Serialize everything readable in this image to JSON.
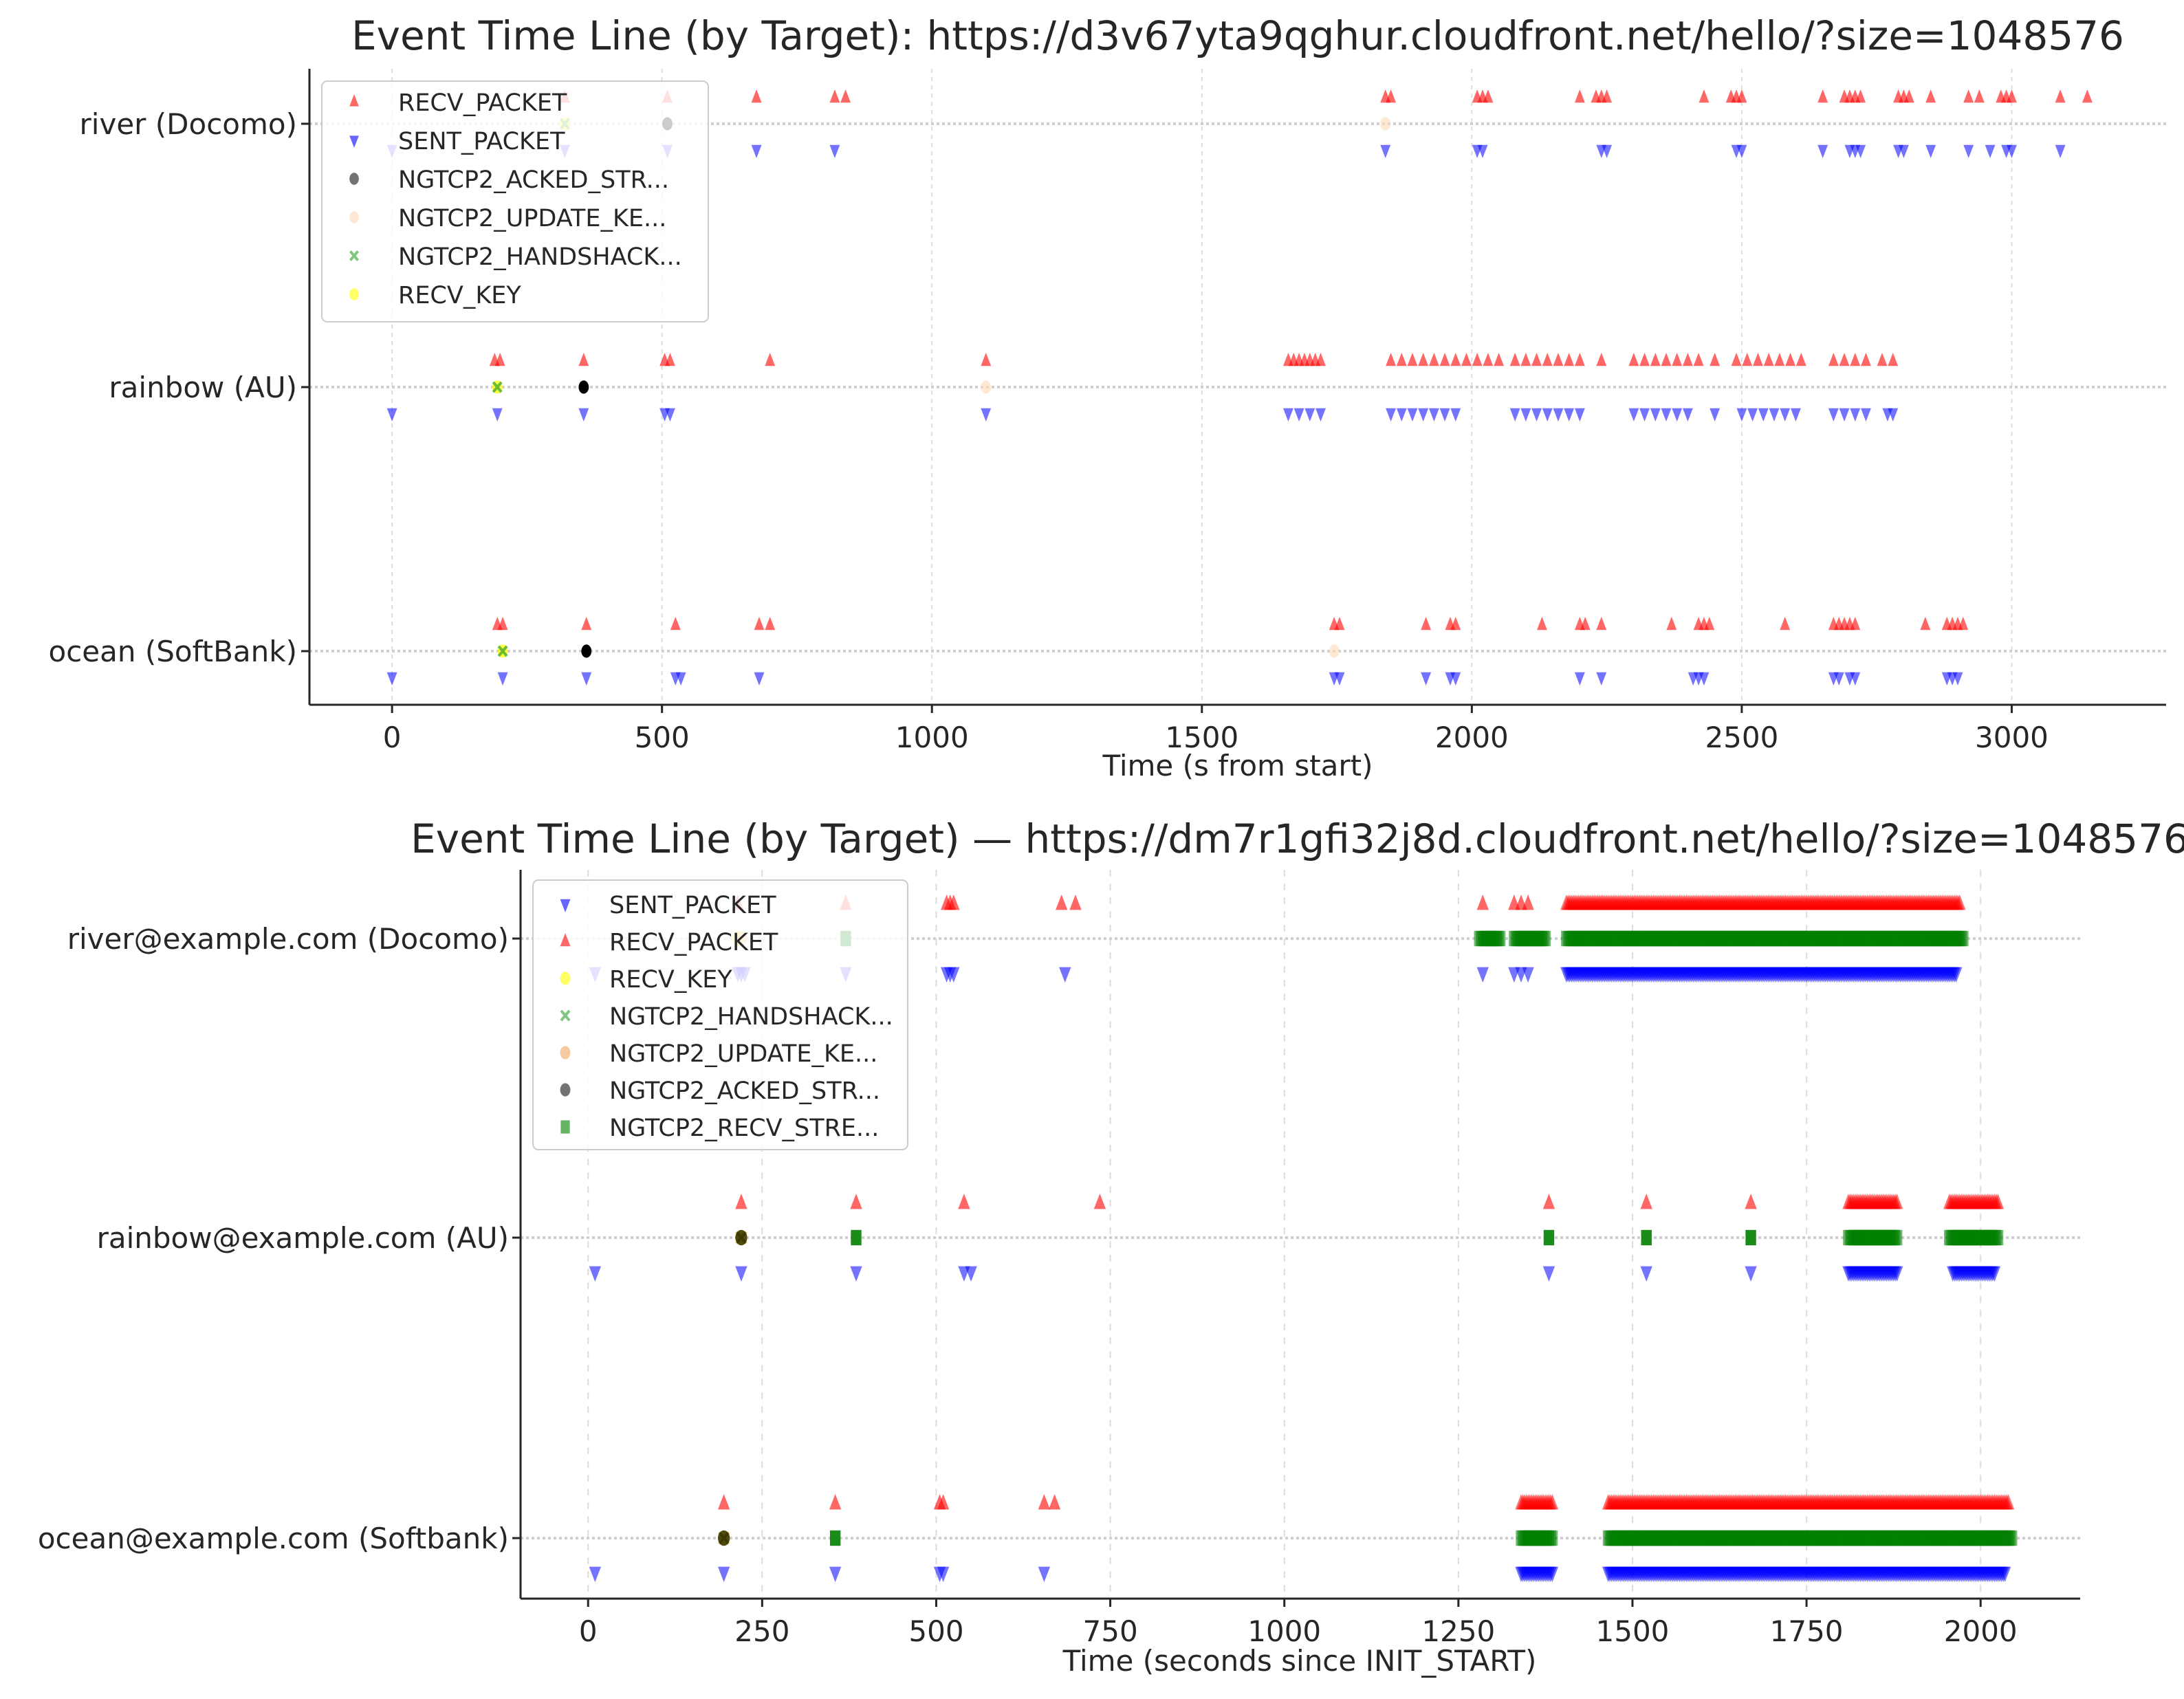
{
  "chart_data": [
    {
      "type": "scatter",
      "title": "Event Time Line (by Target): https://d3v67yta9qghur.cloudfront.net/hello/?size=1048576",
      "xlabel": "Time (s from start)",
      "ylabel": "",
      "xlim": [
        -153,
        3286
      ],
      "xticks": [
        0,
        500,
        1000,
        1500,
        2000,
        2500,
        3000
      ],
      "grid": true,
      "legend_position": "upper left",
      "legend": [
        {
          "label": "RECV_PACKET",
          "marker": "triangle-up",
          "color": "#ff0000"
        },
        {
          "label": "SENT_PACKET",
          "marker": "triangle-down",
          "color": "#0000ff"
        },
        {
          "label": "NGTCP2_ACKED_STR...",
          "marker": "circle",
          "color": "#000000"
        },
        {
          "label": "NGTCP2_UPDATE_KE...",
          "marker": "circle",
          "color": "#ffdab9"
        },
        {
          "label": "NGTCP2_HANDSHACK...",
          "marker": "x",
          "color": "#2ca02c"
        },
        {
          "label": "RECV_KEY",
          "marker": "circle",
          "color": "#ffff00"
        }
      ],
      "categories": [
        "river (Docomo)",
        "rainbow (AU)",
        "ocean (SoftBank)"
      ],
      "rows": [
        {
          "label": "river (Docomo)",
          "RECV_PACKET": [
            320,
            510,
            675,
            820,
            840,
            1840,
            1850,
            2010,
            2020,
            2030,
            2200,
            2230,
            2240,
            2250,
            2430,
            2480,
            2490,
            2500,
            2650,
            2690,
            2700,
            2710,
            2720,
            2790,
            2800,
            2810,
            2850,
            2920,
            2940,
            2980,
            2990,
            3000,
            3090,
            3140
          ],
          "SENT_PACKET": [
            0,
            320,
            510,
            675,
            820,
            1840,
            2010,
            2020,
            2240,
            2250,
            2490,
            2500,
            2650,
            2700,
            2710,
            2720,
            2790,
            2800,
            2850,
            2920,
            2960,
            2990,
            3000,
            3090
          ],
          "NGTCP2_ACKED_STR": [
            510
          ],
          "NGTCP2_UPDATE_KE": [
            1840
          ],
          "NGTCP2_HANDSHACK": [
            320
          ],
          "RECV_KEY": [
            320
          ]
        },
        {
          "label": "rainbow (AU)",
          "RECV_PACKET": [
            190,
            200,
            355,
            505,
            515,
            700,
            1100,
            1660,
            1670,
            1680,
            1690,
            1700,
            1710,
            1720,
            1850,
            1870,
            1890,
            1910,
            1930,
            1950,
            1970,
            1990,
            2010,
            2030,
            2050,
            2080,
            2100,
            2120,
            2140,
            2160,
            2180,
            2200,
            2240,
            2300,
            2320,
            2340,
            2360,
            2380,
            2400,
            2420,
            2450,
            2490,
            2510,
            2530,
            2550,
            2570,
            2590,
            2610,
            2670,
            2690,
            2710,
            2730,
            2760,
            2780
          ],
          "SENT_PACKET": [
            0,
            195,
            355,
            505,
            515,
            1100,
            1660,
            1680,
            1700,
            1720,
            1850,
            1870,
            1890,
            1910,
            1930,
            1950,
            1970,
            2080,
            2100,
            2120,
            2140,
            2160,
            2180,
            2200,
            2300,
            2320,
            2340,
            2360,
            2380,
            2400,
            2450,
            2500,
            2520,
            2540,
            2560,
            2580,
            2600,
            2670,
            2690,
            2710,
            2730,
            2770,
            2780
          ],
          "NGTCP2_ACKED_STR": [
            355
          ],
          "NGTCP2_UPDATE_KE": [
            1100
          ],
          "NGTCP2_HANDSHACK": [
            195
          ],
          "RECV_KEY": [
            195
          ]
        },
        {
          "label": "ocean (SoftBank)",
          "RECV_PACKET": [
            195,
            205,
            360,
            525,
            680,
            700,
            1745,
            1755,
            1915,
            1960,
            1970,
            2130,
            2200,
            2210,
            2240,
            2370,
            2420,
            2430,
            2440,
            2580,
            2670,
            2680,
            2690,
            2700,
            2710,
            2840,
            2880,
            2890,
            2900,
            2910
          ],
          "SENT_PACKET": [
            0,
            205,
            360,
            525,
            535,
            680,
            1745,
            1755,
            1915,
            1960,
            1970,
            2200,
            2240,
            2410,
            2420,
            2430,
            2670,
            2680,
            2700,
            2710,
            2880,
            2890,
            2900
          ],
          "NGTCP2_ACKED_STR": [
            360
          ],
          "NGTCP2_UPDATE_KE": [
            1745
          ],
          "NGTCP2_HANDSHACK": [
            205
          ],
          "RECV_KEY": [
            205
          ]
        }
      ]
    },
    {
      "type": "scatter",
      "title": "Event Time Line (by Target) — https://dm7r1gfi32j8d.cloudfront.net/hello/?size=1048576",
      "xlabel": "Time (seconds since INIT_START)",
      "ylabel": "",
      "xlim": [
        -97,
        2143
      ],
      "xticks": [
        0,
        250,
        500,
        750,
        1000,
        1250,
        1500,
        1750,
        2000
      ],
      "grid": true,
      "legend_position": "upper left",
      "legend": [
        {
          "label": "SENT_PACKET",
          "marker": "triangle-down",
          "color": "#0000ff"
        },
        {
          "label": "RECV_PACKET",
          "marker": "triangle-up",
          "color": "#ff0000"
        },
        {
          "label": "RECV_KEY",
          "marker": "circle",
          "color": "#ffff00"
        },
        {
          "label": "NGTCP2_HANDSHACK...",
          "marker": "x",
          "color": "#2ca02c"
        },
        {
          "label": "NGTCP2_UPDATE_KE...",
          "marker": "circle",
          "color": "#f4a460"
        },
        {
          "label": "NGTCP2_ACKED_STR...",
          "marker": "circle",
          "color": "#000000"
        },
        {
          "label": "NGTCP2_RECV_STRE...",
          "marker": "square",
          "color": "#008000"
        }
      ],
      "categories": [
        "river@example.com (Docomo)",
        "rainbow@example.com (AU)",
        "ocean@example.com (Softbank)"
      ],
      "rows": [
        {
          "label": "river@example.com (Docomo)",
          "RECV_PACKET": [
            215,
            370,
            515,
            520,
            525,
            680,
            700,
            1285,
            1330,
            1340,
            1350
          ],
          "RECV_PACKET_dense": [
            [
              1405,
              1970
            ]
          ],
          "SENT_PACKET": [
            10,
            215,
            220,
            225,
            370,
            515,
            520,
            525,
            685,
            1285,
            1330,
            1340,
            1350
          ],
          "SENT_PACKET_dense": [
            [
              1405,
              1965
            ]
          ],
          "NGTCP2_RECV_STRE": [
            370
          ],
          "NGTCP2_RECV_STRE_dense": [
            [
              1280,
              1310
            ],
            [
              1330,
              1375
            ],
            [
              1405,
              1975
            ]
          ],
          "RECV_KEY": [
            215
          ],
          "NGTCP2_UPDATE_KE": [
            220
          ]
        },
        {
          "label": "rainbow@example.com (AU)",
          "RECV_PACKET": [
            220,
            385,
            540,
            735,
            1380,
            1520,
            1670
          ],
          "RECV_PACKET_dense": [
            [
              1810,
              1880
            ],
            [
              1955,
              2025
            ]
          ],
          "SENT_PACKET": [
            10,
            220,
            385,
            540,
            550,
            1380,
            1520,
            1670
          ],
          "SENT_PACKET_dense": [
            [
              1810,
              1880
            ],
            [
              1960,
              2020
            ]
          ],
          "NGTCP2_RECV_STRE": [
            385,
            1380,
            1520,
            1670
          ],
          "NGTCP2_RECV_STRE_dense": [
            [
              1810,
              1880
            ],
            [
              1955,
              2025
            ]
          ],
          "NGTCP2_HANDSHACK": [
            220
          ],
          "RECV_KEY": [
            220
          ],
          "NGTCP2_ACKED_STR": [
            220
          ]
        },
        {
          "label": "ocean@example.com (Softbank)",
          "RECV_PACKET": [
            195,
            355,
            505,
            510,
            655,
            670
          ],
          "RECV_PACKET_dense": [
            [
              1340,
              1385
            ],
            [
              1465,
              2040
            ]
          ],
          "SENT_PACKET": [
            10,
            195,
            355,
            505,
            510,
            655
          ],
          "SENT_PACKET_dense": [
            [
              1340,
              1385
            ],
            [
              1465,
              2035
            ]
          ],
          "NGTCP2_RECV_STRE": [
            355
          ],
          "NGTCP2_RECV_STRE_dense": [
            [
              1340,
              1385
            ],
            [
              1465,
              2045
            ]
          ],
          "NGTCP2_HANDSHACK": [
            195
          ],
          "RECV_KEY": [
            195
          ],
          "NGTCP2_ACKED_STR": [
            195
          ]
        }
      ]
    }
  ],
  "top_chart": {
    "title": "Event Time Line (by Target): https://d3v67yta9qghur.cloudfront.net/hello/?size=1048576",
    "xlabel": "Time (s from start)",
    "yticks": [
      "river (Docomo)",
      "rainbow (AU)",
      "ocean (SoftBank)"
    ],
    "xticks": [
      "0",
      "500",
      "1000",
      "1500",
      "2000",
      "2500",
      "3000"
    ],
    "legend": [
      "RECV_PACKET",
      "SENT_PACKET",
      "NGTCP2_ACKED_STR...",
      "NGTCP2_UPDATE_KE...",
      "NGTCP2_HANDSHACK...",
      "RECV_KEY"
    ]
  },
  "bottom_chart": {
    "title": "Event Time Line (by Target) — https://dm7r1gfi32j8d.cloudfront.net/hello/?size=1048576",
    "xlabel": "Time (seconds since INIT_START)",
    "yticks": [
      "river@example.com (Docomo)",
      "rainbow@example.com (AU)",
      "ocean@example.com (Softbank)"
    ],
    "xticks": [
      "0",
      "250",
      "500",
      "750",
      "1000",
      "1250",
      "1500",
      "1750",
      "2000"
    ],
    "legend": [
      "SENT_PACKET",
      "RECV_PACKET",
      "RECV_KEY",
      "NGTCP2_HANDSHACK...",
      "NGTCP2_UPDATE_KE...",
      "NGTCP2_ACKED_STR...",
      "NGTCP2_RECV_STRE..."
    ]
  },
  "colors": {
    "recv": "#ff0000",
    "sent": "#0000ff",
    "acked": "#000000",
    "update_key": "#ffdab9",
    "update_key_bottom": "#f4a460",
    "handshake": "#2ca02c",
    "recv_key": "#ffff00",
    "recv_stream": "#008000",
    "text": "#262626",
    "grid": "#dddddd"
  }
}
